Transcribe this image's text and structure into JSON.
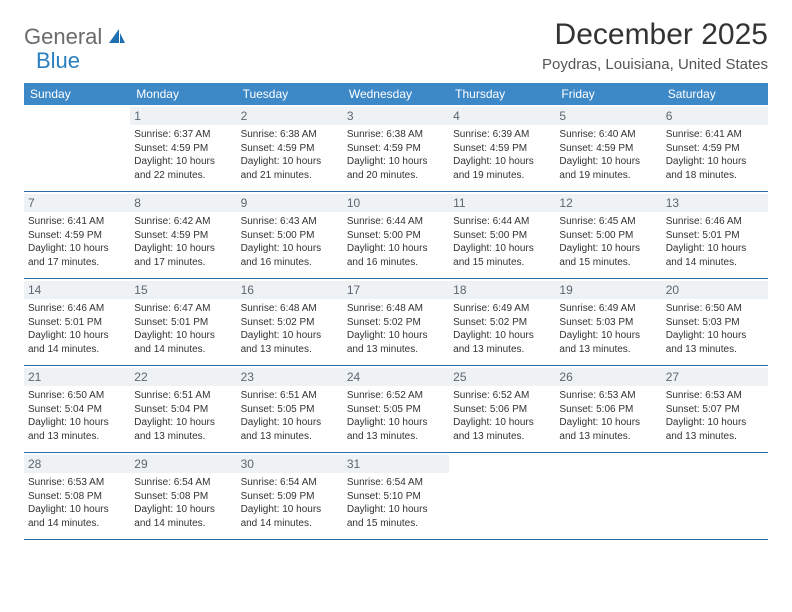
{
  "brand": {
    "part1": "General",
    "part2": "Blue"
  },
  "title": "December 2025",
  "location": "Poydras, Louisiana, United States",
  "colors": {
    "header_bg": "#3d88c7",
    "header_text": "#ffffff",
    "daynum_bg": "#eef2f5",
    "daynum_text": "#5c6670",
    "week_border": "#2a6ca8",
    "body_text": "#333333",
    "brand_gray": "#6b6b6b",
    "brand_blue": "#2a7fbf"
  },
  "day_labels": [
    "Sunday",
    "Monday",
    "Tuesday",
    "Wednesday",
    "Thursday",
    "Friday",
    "Saturday"
  ],
  "weeks": [
    [
      {
        "n": "",
        "sr": "",
        "ss": "",
        "dl": ""
      },
      {
        "n": "1",
        "sr": "Sunrise: 6:37 AM",
        "ss": "Sunset: 4:59 PM",
        "dl": "Daylight: 10 hours and 22 minutes."
      },
      {
        "n": "2",
        "sr": "Sunrise: 6:38 AM",
        "ss": "Sunset: 4:59 PM",
        "dl": "Daylight: 10 hours and 21 minutes."
      },
      {
        "n": "3",
        "sr": "Sunrise: 6:38 AM",
        "ss": "Sunset: 4:59 PM",
        "dl": "Daylight: 10 hours and 20 minutes."
      },
      {
        "n": "4",
        "sr": "Sunrise: 6:39 AM",
        "ss": "Sunset: 4:59 PM",
        "dl": "Daylight: 10 hours and 19 minutes."
      },
      {
        "n": "5",
        "sr": "Sunrise: 6:40 AM",
        "ss": "Sunset: 4:59 PM",
        "dl": "Daylight: 10 hours and 19 minutes."
      },
      {
        "n": "6",
        "sr": "Sunrise: 6:41 AM",
        "ss": "Sunset: 4:59 PM",
        "dl": "Daylight: 10 hours and 18 minutes."
      }
    ],
    [
      {
        "n": "7",
        "sr": "Sunrise: 6:41 AM",
        "ss": "Sunset: 4:59 PM",
        "dl": "Daylight: 10 hours and 17 minutes."
      },
      {
        "n": "8",
        "sr": "Sunrise: 6:42 AM",
        "ss": "Sunset: 4:59 PM",
        "dl": "Daylight: 10 hours and 17 minutes."
      },
      {
        "n": "9",
        "sr": "Sunrise: 6:43 AM",
        "ss": "Sunset: 5:00 PM",
        "dl": "Daylight: 10 hours and 16 minutes."
      },
      {
        "n": "10",
        "sr": "Sunrise: 6:44 AM",
        "ss": "Sunset: 5:00 PM",
        "dl": "Daylight: 10 hours and 16 minutes."
      },
      {
        "n": "11",
        "sr": "Sunrise: 6:44 AM",
        "ss": "Sunset: 5:00 PM",
        "dl": "Daylight: 10 hours and 15 minutes."
      },
      {
        "n": "12",
        "sr": "Sunrise: 6:45 AM",
        "ss": "Sunset: 5:00 PM",
        "dl": "Daylight: 10 hours and 15 minutes."
      },
      {
        "n": "13",
        "sr": "Sunrise: 6:46 AM",
        "ss": "Sunset: 5:01 PM",
        "dl": "Daylight: 10 hours and 14 minutes."
      }
    ],
    [
      {
        "n": "14",
        "sr": "Sunrise: 6:46 AM",
        "ss": "Sunset: 5:01 PM",
        "dl": "Daylight: 10 hours and 14 minutes."
      },
      {
        "n": "15",
        "sr": "Sunrise: 6:47 AM",
        "ss": "Sunset: 5:01 PM",
        "dl": "Daylight: 10 hours and 14 minutes."
      },
      {
        "n": "16",
        "sr": "Sunrise: 6:48 AM",
        "ss": "Sunset: 5:02 PM",
        "dl": "Daylight: 10 hours and 13 minutes."
      },
      {
        "n": "17",
        "sr": "Sunrise: 6:48 AM",
        "ss": "Sunset: 5:02 PM",
        "dl": "Daylight: 10 hours and 13 minutes."
      },
      {
        "n": "18",
        "sr": "Sunrise: 6:49 AM",
        "ss": "Sunset: 5:02 PM",
        "dl": "Daylight: 10 hours and 13 minutes."
      },
      {
        "n": "19",
        "sr": "Sunrise: 6:49 AM",
        "ss": "Sunset: 5:03 PM",
        "dl": "Daylight: 10 hours and 13 minutes."
      },
      {
        "n": "20",
        "sr": "Sunrise: 6:50 AM",
        "ss": "Sunset: 5:03 PM",
        "dl": "Daylight: 10 hours and 13 minutes."
      }
    ],
    [
      {
        "n": "21",
        "sr": "Sunrise: 6:50 AM",
        "ss": "Sunset: 5:04 PM",
        "dl": "Daylight: 10 hours and 13 minutes."
      },
      {
        "n": "22",
        "sr": "Sunrise: 6:51 AM",
        "ss": "Sunset: 5:04 PM",
        "dl": "Daylight: 10 hours and 13 minutes."
      },
      {
        "n": "23",
        "sr": "Sunrise: 6:51 AM",
        "ss": "Sunset: 5:05 PM",
        "dl": "Daylight: 10 hours and 13 minutes."
      },
      {
        "n": "24",
        "sr": "Sunrise: 6:52 AM",
        "ss": "Sunset: 5:05 PM",
        "dl": "Daylight: 10 hours and 13 minutes."
      },
      {
        "n": "25",
        "sr": "Sunrise: 6:52 AM",
        "ss": "Sunset: 5:06 PM",
        "dl": "Daylight: 10 hours and 13 minutes."
      },
      {
        "n": "26",
        "sr": "Sunrise: 6:53 AM",
        "ss": "Sunset: 5:06 PM",
        "dl": "Daylight: 10 hours and 13 minutes."
      },
      {
        "n": "27",
        "sr": "Sunrise: 6:53 AM",
        "ss": "Sunset: 5:07 PM",
        "dl": "Daylight: 10 hours and 13 minutes."
      }
    ],
    [
      {
        "n": "28",
        "sr": "Sunrise: 6:53 AM",
        "ss": "Sunset: 5:08 PM",
        "dl": "Daylight: 10 hours and 14 minutes."
      },
      {
        "n": "29",
        "sr": "Sunrise: 6:54 AM",
        "ss": "Sunset: 5:08 PM",
        "dl": "Daylight: 10 hours and 14 minutes."
      },
      {
        "n": "30",
        "sr": "Sunrise: 6:54 AM",
        "ss": "Sunset: 5:09 PM",
        "dl": "Daylight: 10 hours and 14 minutes."
      },
      {
        "n": "31",
        "sr": "Sunrise: 6:54 AM",
        "ss": "Sunset: 5:10 PM",
        "dl": "Daylight: 10 hours and 15 minutes."
      },
      {
        "n": "",
        "sr": "",
        "ss": "",
        "dl": ""
      },
      {
        "n": "",
        "sr": "",
        "ss": "",
        "dl": ""
      },
      {
        "n": "",
        "sr": "",
        "ss": "",
        "dl": ""
      }
    ]
  ]
}
